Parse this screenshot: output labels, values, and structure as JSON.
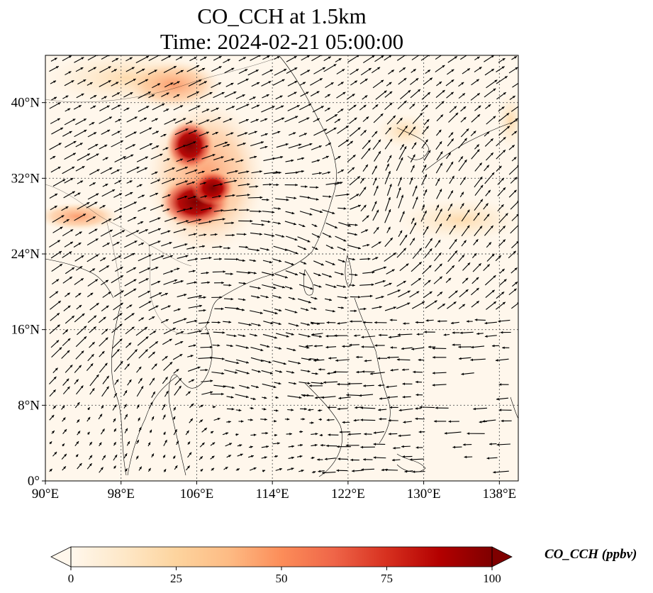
{
  "title": {
    "line1": "CO_CCH at 1.5km",
    "line2": "Time: 2024-02-21 05:00:00"
  },
  "map": {
    "lon_range": [
      90,
      140
    ],
    "lat_range": [
      0,
      45
    ],
    "lon_ticks": [
      {
        "value": 90,
        "label": "90°E"
      },
      {
        "value": 98,
        "label": "98°E"
      },
      {
        "value": 106,
        "label": "106°E"
      },
      {
        "value": 114,
        "label": "114°E"
      },
      {
        "value": 122,
        "label": "122°E"
      },
      {
        "value": 130,
        "label": "130°E"
      },
      {
        "value": 138,
        "label": "138°E"
      }
    ],
    "lat_ticks": [
      {
        "value": 0,
        "label": "0°"
      },
      {
        "value": 8,
        "label": "8°N"
      },
      {
        "value": 16,
        "label": "16°N"
      },
      {
        "value": 24,
        "label": "24°N"
      },
      {
        "value": 32,
        "label": "32°N"
      },
      {
        "value": 40,
        "label": "40°N"
      }
    ],
    "gridlines": true,
    "field": "CO_CCH",
    "wind_vectors": true,
    "pollution_hotspot_center": {
      "lon": 105,
      "lat": 33
    }
  },
  "colorbar": {
    "title": "CO_CCH (ppbv)",
    "ticks": [
      {
        "value": 0,
        "label": "0"
      },
      {
        "value": 25,
        "label": "25"
      },
      {
        "value": 50,
        "label": "50"
      },
      {
        "value": 75,
        "label": "75"
      },
      {
        "value": 100,
        "label": "100"
      }
    ],
    "range": [
      0,
      100
    ],
    "colormap": "OrRd",
    "colors": [
      "#fff7ec",
      "#fee8c8",
      "#fdd49e",
      "#fdbb84",
      "#fc8d59",
      "#ef6548",
      "#d7301f",
      "#b30000",
      "#7f0000"
    ],
    "extend": "both"
  }
}
